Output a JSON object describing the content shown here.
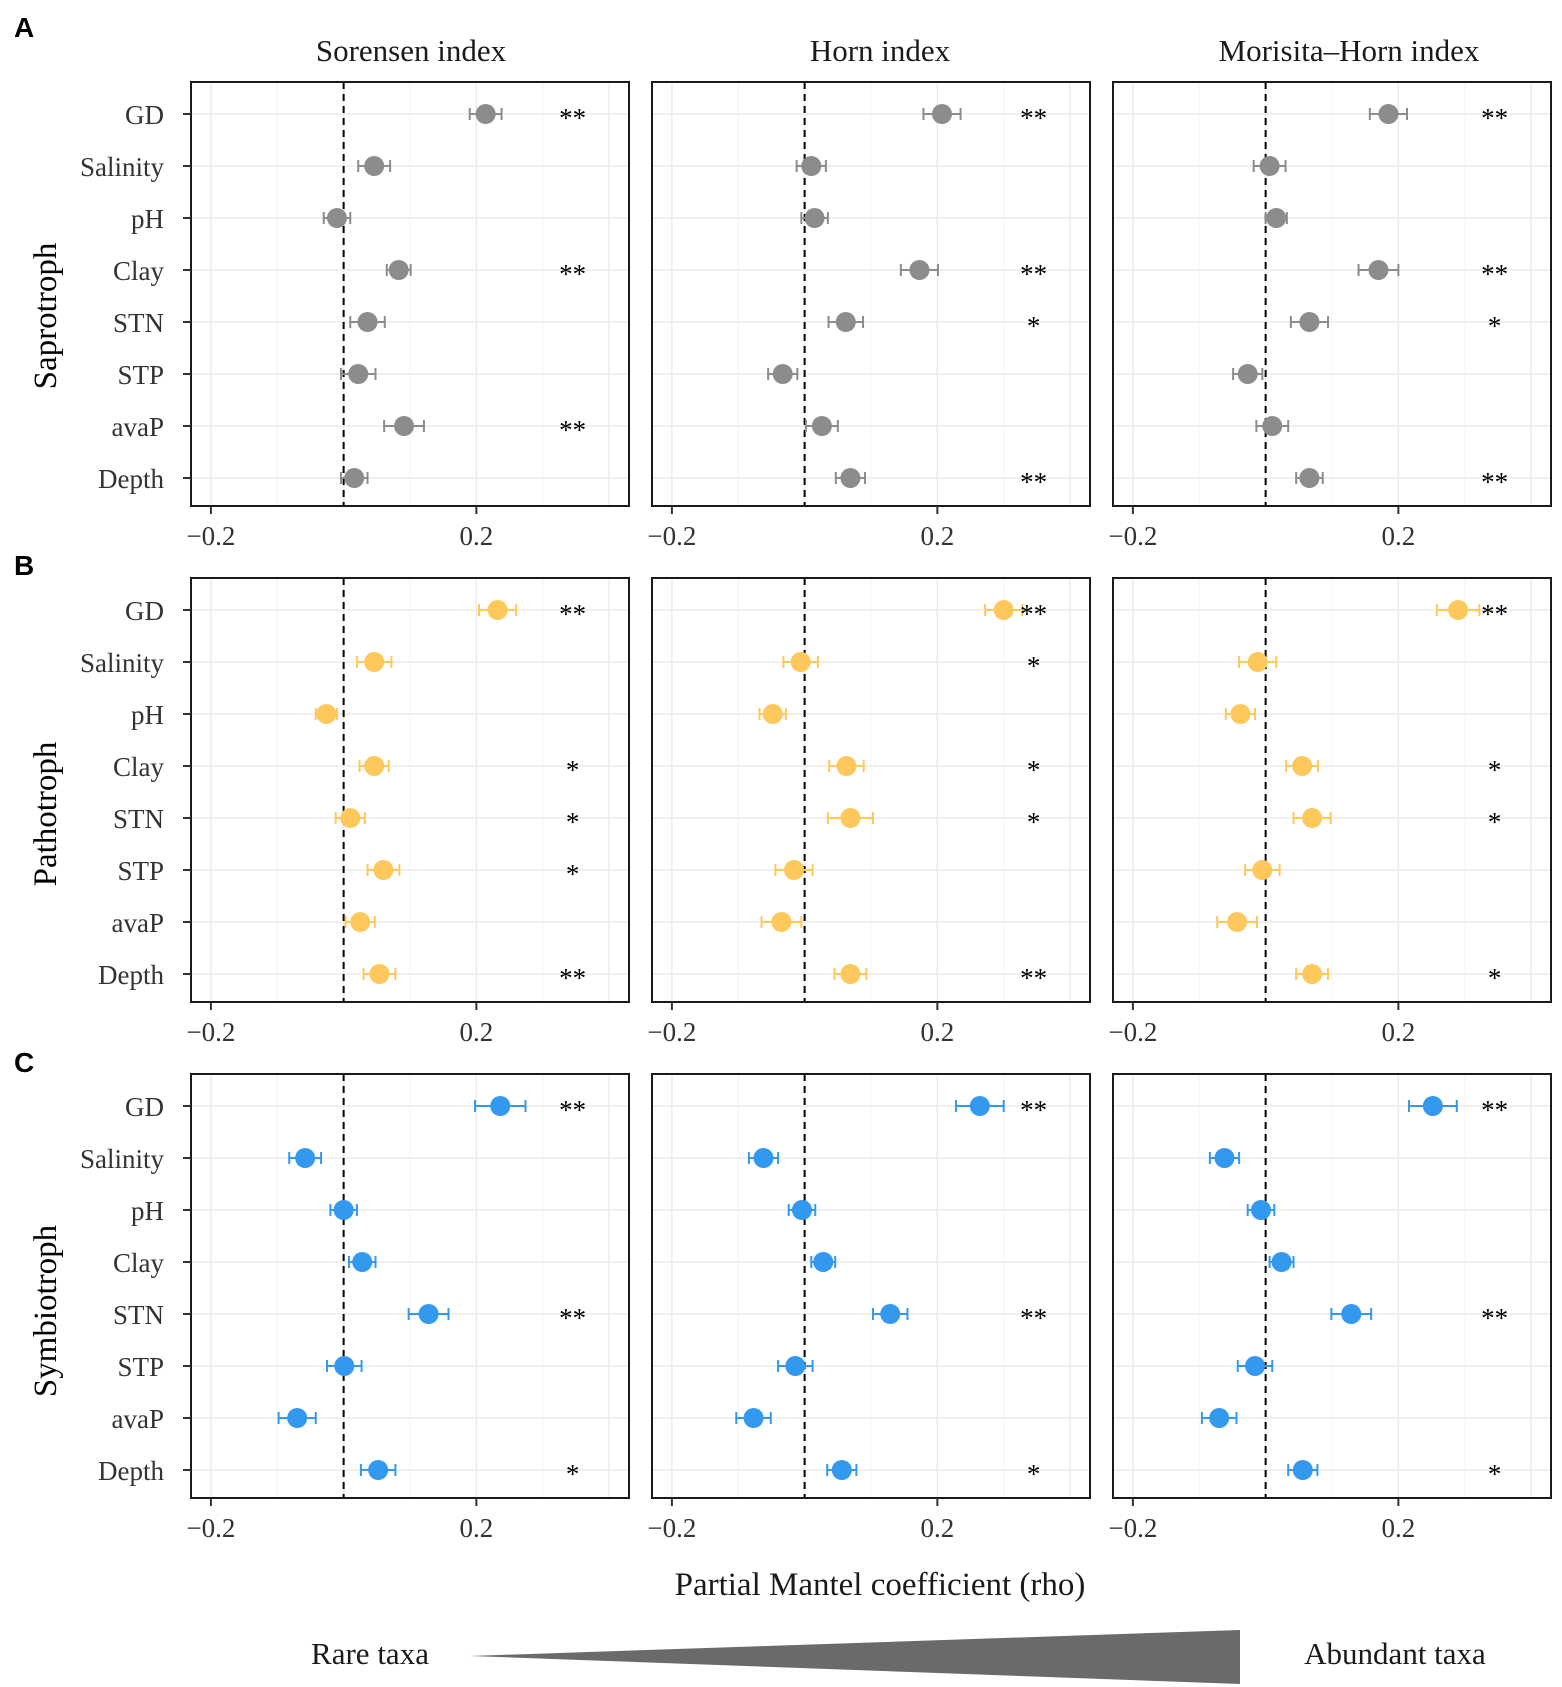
{
  "chart_data": {
    "type": "scatter",
    "subtype": "dot-with-error-bars",
    "xlabel": "Partial Mantel coefficient (rho)",
    "xlim": [
      -0.23,
      0.43
    ],
    "xticks": [
      -0.2,
      0.2
    ],
    "xtick_labels": [
      "−0.2",
      "0.2"
    ],
    "reference_line_x": 0,
    "columns": [
      "Sorensen index",
      "Horn index",
      "Morisita–Horn index"
    ],
    "variables": [
      "GD",
      "Salinity",
      "pH",
      "Clay",
      "STN",
      "STP",
      "avaP",
      "Depth"
    ],
    "gradient": {
      "left": "Rare taxa",
      "right": "Abundant taxa"
    },
    "panels": [
      {
        "letter": "A",
        "group": "Saprotroph",
        "color": "#8c8c8c",
        "data": [
          {
            "rho": [
              0.214,
              0.046,
              -0.01,
              0.083,
              0.036,
              0.022,
              0.091,
              0.016
            ],
            "err": [
              0.024,
              0.024,
              0.02,
              0.018,
              0.026,
              0.026,
              0.03,
              0.02
            ],
            "sig": [
              "**",
              "",
              "",
              "**",
              "",
              "",
              "**",
              ""
            ]
          },
          {
            "rho": [
              0.207,
              0.01,
              0.015,
              0.173,
              0.062,
              -0.033,
              0.026,
              0.069
            ],
            "err": [
              0.028,
              0.022,
              0.02,
              0.028,
              0.026,
              0.022,
              0.024,
              0.022
            ],
            "sig": [
              "**",
              "",
              "",
              "**",
              "*",
              "",
              "",
              "**"
            ]
          },
          {
            "rho": [
              0.185,
              0.006,
              0.016,
              0.17,
              0.066,
              -0.027,
              0.01,
              0.066
            ],
            "err": [
              0.028,
              0.024,
              0.016,
              0.03,
              0.028,
              0.022,
              0.024,
              0.02
            ],
            "sig": [
              "**",
              "",
              "",
              "**",
              "*",
              "",
              "",
              "**"
            ]
          }
        ]
      },
      {
        "letter": "B",
        "group": "Pathotroph",
        "color": "#ffc85c",
        "data": [
          {
            "rho": [
              0.232,
              0.046,
              -0.026,
              0.046,
              0.01,
              0.06,
              0.025,
              0.054
            ],
            "err": [
              0.028,
              0.026,
              0.016,
              0.022,
              0.022,
              0.024,
              0.022,
              0.024
            ],
            "sig": [
              "**",
              "",
              "",
              "*",
              "*",
              "*",
              "",
              "**"
            ]
          },
          {
            "rho": [
              0.3,
              -0.006,
              -0.048,
              0.063,
              0.069,
              -0.016,
              -0.035,
              0.069
            ],
            "err": [
              0.028,
              0.026,
              0.02,
              0.026,
              0.034,
              0.028,
              0.03,
              0.024
            ],
            "sig": [
              "**",
              "*",
              "",
              "*",
              "*",
              "",
              "",
              "**"
            ]
          },
          {
            "rho": [
              0.29,
              -0.012,
              -0.038,
              0.055,
              0.07,
              -0.005,
              -0.043,
              0.07
            ],
            "err": [
              0.032,
              0.028,
              0.022,
              0.024,
              0.028,
              0.026,
              0.03,
              0.024
            ],
            "sig": [
              "**",
              "",
              "",
              "*",
              "*",
              "",
              "",
              "*"
            ]
          }
        ]
      },
      {
        "letter": "C",
        "group": "Symbiotroph",
        "color": "#3399ee",
        "data": [
          {
            "rho": [
              0.236,
              -0.058,
              0.0,
              0.028,
              0.128,
              0.001,
              -0.07,
              0.052
            ],
            "err": [
              0.038,
              0.024,
              0.02,
              0.02,
              0.03,
              0.026,
              0.028,
              0.026
            ],
            "sig": [
              "**",
              "",
              "",
              "",
              "**",
              "",
              "",
              "*"
            ]
          },
          {
            "rho": [
              0.264,
              -0.062,
              -0.004,
              0.028,
              0.129,
              -0.014,
              -0.077,
              0.056
            ],
            "err": [
              0.036,
              0.022,
              0.02,
              0.018,
              0.026,
              0.026,
              0.026,
              0.022
            ],
            "sig": [
              "**",
              "",
              "",
              "",
              "**",
              "",
              "",
              "*"
            ]
          },
          {
            "rho": [
              0.252,
              -0.062,
              -0.007,
              0.024,
              0.129,
              -0.016,
              -0.07,
              0.056
            ],
            "err": [
              0.036,
              0.022,
              0.02,
              0.018,
              0.03,
              0.026,
              0.026,
              0.022
            ],
            "sig": [
              "**",
              "",
              "",
              "",
              "**",
              "",
              "",
              "*"
            ]
          }
        ]
      }
    ]
  }
}
